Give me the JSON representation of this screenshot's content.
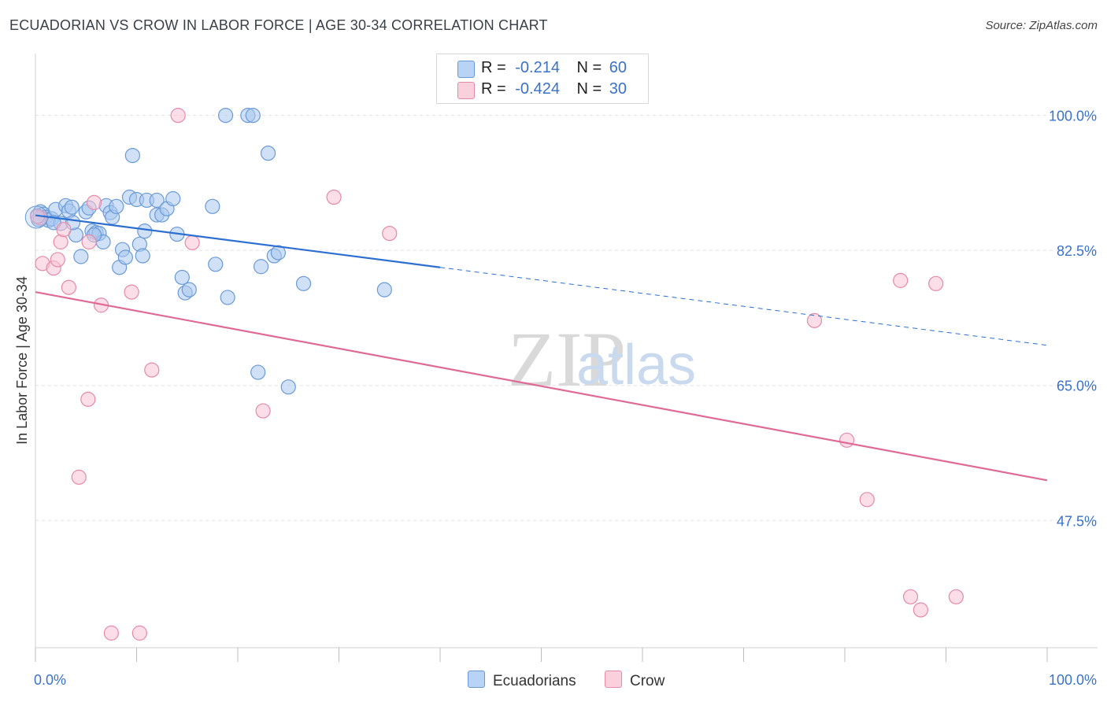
{
  "header": {
    "title": "ECUADORIAN VS CROW IN LABOR FORCE | AGE 30-34 CORRELATION CHART",
    "source": "Source: ZipAtlas.com"
  },
  "legend": {
    "rows": [
      {
        "r_label": "R =",
        "r_value": "-0.214",
        "n_label": "N =",
        "n_value": "60"
      },
      {
        "r_label": "R =",
        "r_value": "-0.424",
        "n_label": "N =",
        "n_value": "30"
      }
    ]
  },
  "bottom_legend": {
    "ecuadorians": "Ecuadorians",
    "crow": "Crow"
  },
  "watermark": {
    "zip": "ZIP",
    "atlas": "atlas"
  },
  "colors": {
    "blue_fill": "#a9c8f0",
    "blue_stroke": "#6a9ad6",
    "blue_line": "#2c6fd1",
    "pink_fill": "#f8c3d3",
    "pink_stroke": "#e58aa8",
    "pink_line": "#e06a96",
    "axis_label": "#3a72c8",
    "grid": "#e3e3e3"
  },
  "chart_data": {
    "type": "scatter",
    "title": "ECUADORIAN VS CROW IN LABOR FORCE | AGE 30-34 CORRELATION CHART",
    "xlabel": "",
    "ylabel": "In Labor Force | Age 30-34",
    "xlim": [
      0,
      100
    ],
    "ylim": [
      31,
      107
    ],
    "x_tick_labels": [
      {
        "value": 0,
        "label": "0.0%"
      },
      {
        "value": 100,
        "label": "100.0%"
      }
    ],
    "y_tick_labels": [
      {
        "value": 100,
        "label": "100.0%"
      },
      {
        "value": 82.5,
        "label": "82.5%"
      },
      {
        "value": 65,
        "label": "65.0%"
      },
      {
        "value": 47.5,
        "label": "47.5%"
      }
    ],
    "grid": true,
    "legend_position": "top-center",
    "series": [
      {
        "name": "Ecuadorians",
        "R": -0.214,
        "N": 60,
        "points": [
          [
            0.2,
            87
          ],
          [
            0.5,
            87.5
          ],
          [
            0.8,
            87.2
          ],
          [
            1,
            86.8
          ],
          [
            1.3,
            86.4
          ],
          [
            1.6,
            86.6
          ],
          [
            2,
            87.8
          ],
          [
            2.5,
            86
          ],
          [
            3,
            88.3
          ],
          [
            3.3,
            87.6
          ],
          [
            3.6,
            88.1
          ],
          [
            4,
            84.5
          ],
          [
            4.5,
            81.7
          ],
          [
            5,
            87.5
          ],
          [
            5.3,
            88
          ],
          [
            5.6,
            85
          ],
          [
            6,
            84.8
          ],
          [
            6.3,
            84.7
          ],
          [
            6.7,
            83.6
          ],
          [
            7,
            88.3
          ],
          [
            7.4,
            87.4
          ],
          [
            7.6,
            86.8
          ],
          [
            8,
            88.2
          ],
          [
            8.3,
            80.3
          ],
          [
            8.6,
            82.6
          ],
          [
            8.9,
            81.6
          ],
          [
            9.3,
            89.4
          ],
          [
            9.6,
            94.8
          ],
          [
            10,
            89.1
          ],
          [
            10.3,
            83.3
          ],
          [
            10.6,
            81.8
          ],
          [
            10.8,
            85
          ],
          [
            11,
            89
          ],
          [
            12,
            89
          ],
          [
            12,
            87.1
          ],
          [
            12.5,
            87.1
          ],
          [
            13,
            87.9
          ],
          [
            13.6,
            89.2
          ],
          [
            14,
            84.6
          ],
          [
            14.5,
            79
          ],
          [
            14.8,
            77
          ],
          [
            15.2,
            77.4
          ],
          [
            17.5,
            88.2
          ],
          [
            17.8,
            80.7
          ],
          [
            18.8,
            100
          ],
          [
            19,
            76.4
          ],
          [
            21,
            100
          ],
          [
            21.5,
            100
          ],
          [
            22,
            66.7
          ],
          [
            22.3,
            80.4
          ],
          [
            23,
            95.1
          ],
          [
            23.6,
            81.8
          ],
          [
            24,
            82.2
          ],
          [
            25,
            64.8
          ],
          [
            26.5,
            78.2
          ],
          [
            34.5,
            77.4
          ],
          [
            0.3,
            86.5
          ],
          [
            1.8,
            86.1
          ],
          [
            5.8,
            84.5
          ],
          [
            3.7,
            86.1
          ]
        ]
      },
      {
        "name": "Crow",
        "R": -0.424,
        "N": 30,
        "points": [
          [
            0.5,
            86.7
          ],
          [
            0.7,
            80.8
          ],
          [
            1.8,
            80.2
          ],
          [
            2.2,
            81.3
          ],
          [
            2.5,
            83.6
          ],
          [
            2.8,
            85.2
          ],
          [
            3.3,
            77.7
          ],
          [
            4.3,
            53.1
          ],
          [
            5.2,
            63.2
          ],
          [
            5.3,
            83.6
          ],
          [
            5.8,
            88.7
          ],
          [
            6.5,
            75.4
          ],
          [
            7.5,
            32.9
          ],
          [
            9.5,
            77.1
          ],
          [
            10.3,
            32.9
          ],
          [
            11.5,
            67
          ],
          [
            14.1,
            100
          ],
          [
            15.5,
            83.5
          ],
          [
            22.5,
            61.7
          ],
          [
            29.5,
            89.4
          ],
          [
            35,
            84.7
          ],
          [
            77,
            73.4
          ],
          [
            80.2,
            57.9
          ],
          [
            82.2,
            50.2
          ],
          [
            85.5,
            78.6
          ],
          [
            86.5,
            37.6
          ],
          [
            87.5,
            35.9
          ],
          [
            89,
            78.2
          ],
          [
            91,
            37.6
          ],
          [
            0.2,
            86.9
          ]
        ]
      }
    ],
    "trend_lines": [
      {
        "series": "Ecuadorians",
        "solid": [
          [
            0,
            87.05
          ],
          [
            40,
            80.3
          ]
        ],
        "dashed": [
          [
            40,
            80.3
          ],
          [
            100,
            70.2
          ]
        ]
      },
      {
        "series": "Crow",
        "solid": [
          [
            0,
            77.1
          ],
          [
            100,
            52.7
          ]
        ]
      }
    ]
  }
}
